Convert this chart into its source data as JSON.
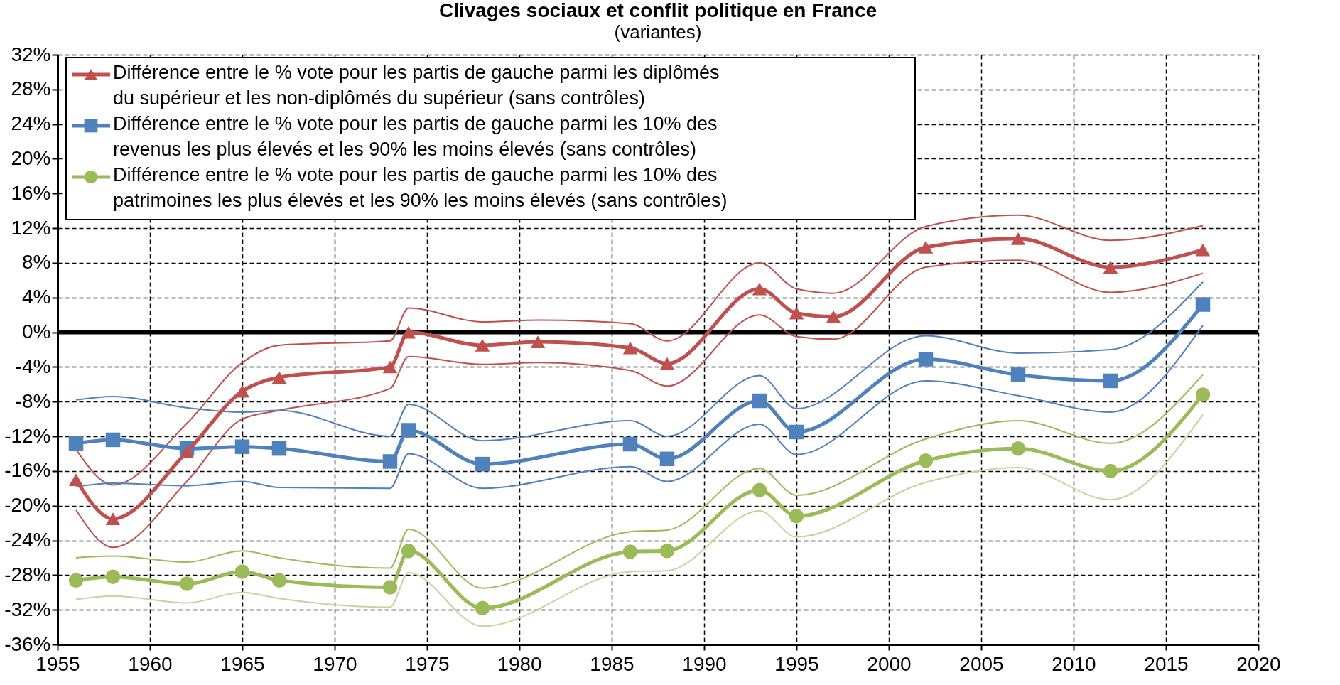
{
  "chart_data": {
    "type": "line",
    "title": "Clivages sociaux et conflit politique en France",
    "subtitle": "(variantes)",
    "xlim": [
      1955,
      2020
    ],
    "xticks": [
      1955,
      1960,
      1965,
      1970,
      1975,
      1980,
      1985,
      1990,
      1995,
      2000,
      2005,
      2010,
      2015,
      2020
    ],
    "ylim": [
      -36,
      32
    ],
    "yticks": [
      {
        "value": -36,
        "label": "-36%"
      },
      {
        "value": -32,
        "label": "-32%"
      },
      {
        "value": -28,
        "label": "-28%"
      },
      {
        "value": -24,
        "label": "-24%"
      },
      {
        "value": -20,
        "label": "-20%"
      },
      {
        "value": -16,
        "label": "-16%"
      },
      {
        "value": -12,
        "label": "-12%"
      },
      {
        "value": -8,
        "label": "-8%"
      },
      {
        "value": -4,
        "label": "-4%"
      },
      {
        "value": 0,
        "label": "0%"
      },
      {
        "value": 4,
        "label": "4%"
      },
      {
        "value": 8,
        "label": "8%"
      },
      {
        "value": 12,
        "label": "12%"
      },
      {
        "value": 16,
        "label": "16%"
      },
      {
        "value": 20,
        "label": "20%"
      },
      {
        "value": 24,
        "label": "24%"
      },
      {
        "value": 28,
        "label": "28%"
      },
      {
        "value": 32,
        "label": "32%"
      }
    ],
    "grid": true,
    "legend": "top left",
    "line_style": "solid",
    "ref_lines": [
      {
        "axis": "y",
        "value": 0,
        "color": "#000000"
      }
    ],
    "series": [
      {
        "color": "#c0504d",
        "marker": "none",
        "x": [
          1956,
          1958,
          1962,
          1965,
          1967,
          1973,
          1974,
          1978,
          1981,
          1986,
          1988,
          1993,
          1995,
          1997,
          2002,
          2007,
          2012,
          2017
        ],
        "values": [
          -13.5,
          -17.6,
          -10.5,
          -3.5,
          -1.5,
          -1,
          2.8,
          1.2,
          1.4,
          1,
          -1,
          8,
          5,
          4.5,
          12.2,
          13.5,
          10.6,
          12.3
        ]
      },
      {
        "color": "#c0504d",
        "marker": "none",
        "x": [
          1956,
          1958,
          1962,
          1965,
          1967,
          1973,
          1974,
          1978,
          1981,
          1986,
          1988,
          1993,
          1995,
          1997,
          2002,
          2007,
          2012,
          2017
        ],
        "values": [
          -20.5,
          -24.8,
          -17.2,
          -10,
          -9,
          -6.5,
          -2.8,
          -3.7,
          -3.5,
          -4.4,
          -6.2,
          2,
          -0.5,
          -0.8,
          7.5,
          8.3,
          4.6,
          6.8
        ]
      },
      {
        "color": "#4f81bd",
        "marker": "none",
        "x": [
          1956,
          1958,
          1962,
          1965,
          1967,
          1973,
          1974,
          1978,
          1986,
          1988,
          1993,
          1995,
          2002,
          2007,
          2012,
          2017
        ],
        "values": [
          -7.8,
          -7.4,
          -8.7,
          -9.2,
          -9,
          -12,
          -8.3,
          -12.5,
          -10.2,
          -12,
          -5,
          -8.8,
          -0.4,
          -2.4,
          -2,
          5.8
        ]
      },
      {
        "color": "#4f81bd",
        "marker": "none",
        "x": [
          1956,
          1958,
          1962,
          1965,
          1967,
          1973,
          1974,
          1978,
          1986,
          1988,
          1993,
          1995,
          2002,
          2007,
          2012,
          2017
        ],
        "values": [
          -17.8,
          -17.4,
          -17.7,
          -17.2,
          -17.9,
          -18,
          -14,
          -18,
          -15.5,
          -17.2,
          -10.6,
          -14.1,
          -5.6,
          -7.3,
          -9.2,
          0.8
        ]
      },
      {
        "color": "#9bbb59",
        "marker": "none",
        "x": [
          1956,
          1958,
          1962,
          1965,
          1967,
          1973,
          1974,
          1978,
          1986,
          1988,
          1993,
          1995,
          2002,
          2007,
          2012,
          2017
        ],
        "values": [
          -26,
          -25.8,
          -26.5,
          -25.2,
          -26,
          -27.2,
          -22.7,
          -29.5,
          -23,
          -22.8,
          -15.7,
          -18.8,
          -12.3,
          -10.2,
          -12.8,
          -4.9
        ]
      },
      {
        "color": "#c3d69b",
        "marker": "none",
        "x": [
          1956,
          1958,
          1962,
          1965,
          1967,
          1973,
          1974,
          1978,
          1986,
          1988,
          1993,
          1995,
          2002,
          2007,
          2012,
          2017
        ],
        "values": [
          -30.8,
          -30.4,
          -31.2,
          -30,
          -30.7,
          -31.7,
          -27.7,
          -33.9,
          -27.6,
          -27.5,
          -20.6,
          -23.6,
          -17.3,
          -15.6,
          -19.3,
          -9.5
        ]
      },
      {
        "name": "Différence entre le % vote pour les partis de gauche parmi les 10% des patrimoines les plus élevés et les 90% les moins élevés (sans contrôles)",
        "color": "#9bbb59",
        "marker": "circle",
        "x": [
          1956,
          1958,
          1962,
          1965,
          1967,
          1973,
          1974,
          1978,
          1986,
          1988,
          1993,
          1995,
          2002,
          2007,
          2012,
          2017
        ],
        "values": [
          -28.6,
          -28.2,
          -29,
          -27.6,
          -28.6,
          -29.4,
          -25.2,
          -31.8,
          -25.3,
          -25.2,
          -18.2,
          -21.2,
          -14.8,
          -13.4,
          -16,
          -7.2
        ]
      },
      {
        "name": "Différence entre le % vote pour les partis de gauche parmi les 10% des revenus les plus élevés et les 90% les moins élevés (sans contrôles)",
        "color": "#4f81bd",
        "marker": "square",
        "x": [
          1956,
          1958,
          1962,
          1965,
          1967,
          1973,
          1974,
          1978,
          1986,
          1988,
          1993,
          1995,
          2002,
          2007,
          2012,
          2017
        ],
        "values": [
          -12.8,
          -12.4,
          -13.4,
          -13.2,
          -13.4,
          -14.9,
          -11.3,
          -15.2,
          -12.9,
          -14.6,
          -7.9,
          -11.5,
          -3.1,
          -4.9,
          -5.6,
          3.2
        ]
      },
      {
        "name": "Différence entre le % vote pour les partis de gauche parmi les diplômés du supérieur et les non-diplômés du supérieur (sans contrôles)",
        "color": "#c0504d",
        "marker": "triangle",
        "x": [
          1956,
          1958,
          1962,
          1965,
          1967,
          1973,
          1974,
          1978,
          1981,
          1986,
          1988,
          1993,
          1995,
          1997,
          2002,
          2007,
          2012,
          2017
        ],
        "values": [
          -17,
          -21.5,
          -13.8,
          -6.8,
          -5.2,
          -4,
          0,
          -1.5,
          -1.1,
          -1.8,
          -3.6,
          5,
          2.2,
          1.8,
          9.8,
          10.8,
          7.5,
          9.5
        ]
      }
    ]
  }
}
